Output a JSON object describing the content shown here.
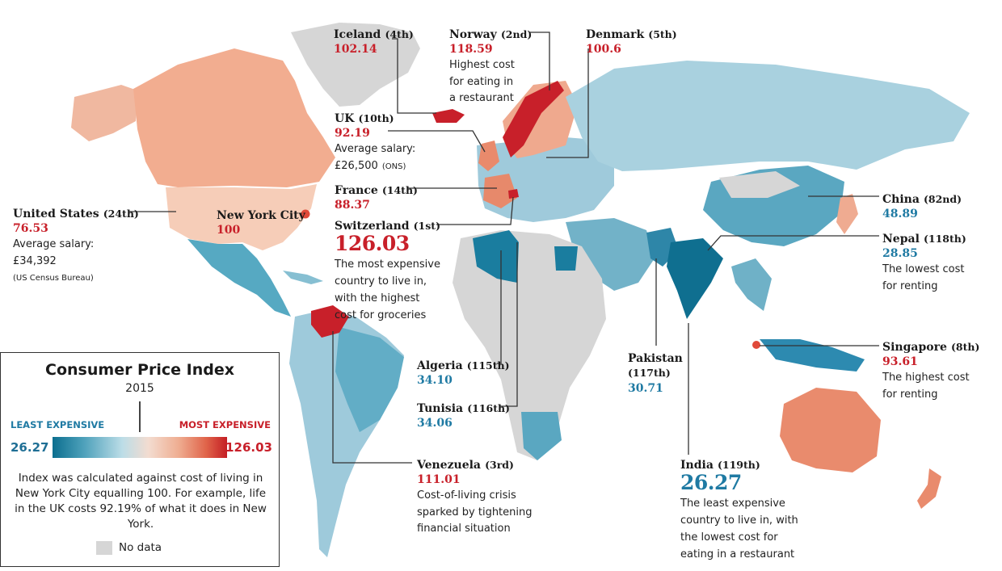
{
  "map": {
    "title": "",
    "colors": {
      "expensive": "#c8202a",
      "cheap": "#0c6f8f",
      "no_data": "#d6d6d6"
    }
  },
  "legend": {
    "title": "Consumer Price Index",
    "year": "2015",
    "least_label": "LEAST EXPENSIVE",
    "most_label": "MOST EXPENSIVE",
    "min_value": "26.27",
    "max_value": "126.03",
    "explanation": "Index was calculated against cost of living in New York City equalling 100. For example, life in the UK costs 92.19% of what it does in New York.",
    "no_data": "No data"
  },
  "annotations": {
    "iceland": {
      "name": "Iceland",
      "rank": "(4th)",
      "value": "102.14"
    },
    "norway": {
      "name": "Norway",
      "rank": "(2nd)",
      "value": "118.59",
      "note1": "Highest cost",
      "note2": "for eating in",
      "note3": "a restaurant"
    },
    "denmark": {
      "name": "Denmark",
      "rank": "(5th)",
      "value": "100.6"
    },
    "uk": {
      "name": "UK",
      "rank": "(10th)",
      "value": "92.19",
      "note1": "Average salary:",
      "note2": "£26,500",
      "note3": "(ONS)"
    },
    "france": {
      "name": "France",
      "rank": "(14th)",
      "value": "88.37"
    },
    "switzerland": {
      "name": "Switzerland",
      "rank": "(1st)",
      "value": "126.03",
      "note1": "The most expensive",
      "note2": "country to live in,",
      "note3": "with the highest",
      "note4": "cost for groceries"
    },
    "usa": {
      "name": "United States",
      "rank": "(24th)",
      "value": "76.53",
      "note1": "Average salary:",
      "note2": "£34,392",
      "note3": "(US Census Bureau)"
    },
    "nyc": {
      "name": "New York City",
      "value": "100"
    },
    "algeria": {
      "name": "Algeria",
      "rank": "(115th)",
      "value": "34.10"
    },
    "tunisia": {
      "name": "Tunisia",
      "rank": "(116th)",
      "value": "34.06"
    },
    "venezuela": {
      "name": "Venezuela",
      "rank": "(3rd)",
      "value": "111.01",
      "note1": "Cost-of-living crisis",
      "note2": "sparked by tightening",
      "note3": "financial situation"
    },
    "pakistan": {
      "name": "Pakistan",
      "rank": "(117th)",
      "value": "30.71"
    },
    "india": {
      "name": "India",
      "rank": "(119th)",
      "value": "26.27",
      "note1": "The least expensive",
      "note2": "country to live in, with",
      "note3": "the lowest cost for",
      "note4": "eating in a restaurant"
    },
    "china": {
      "name": "China",
      "rank": "(82nd)",
      "value": "48.89"
    },
    "nepal": {
      "name": "Nepal",
      "rank": "(118th)",
      "value": "28.85",
      "note1": "The lowest cost",
      "note2": "for renting"
    },
    "singapore": {
      "name": "Singapore",
      "rank": "(8th)",
      "value": "93.61",
      "note1": "The highest cost",
      "note2": "for renting"
    }
  }
}
